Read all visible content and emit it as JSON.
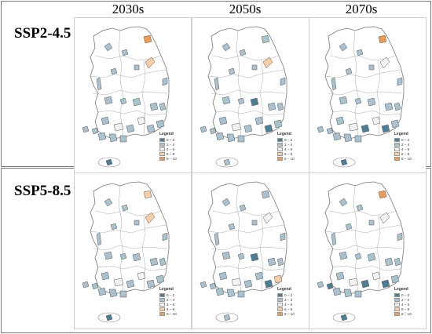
{
  "column_headers": [
    "2030s",
    "2050s",
    "2070s"
  ],
  "rows": [
    {
      "label": "SSP2-4.5"
    },
    {
      "label": "SSP5-8.5"
    }
  ],
  "legend": {
    "title": "Legend",
    "classes": [
      {
        "label": "0 – 2",
        "color": "#4a7f95"
      },
      {
        "label": "2 – 4",
        "color": "#a9c2cf"
      },
      {
        "label": "4 – 6",
        "color": "#f2f2f2"
      },
      {
        "label": "6 – 8",
        "color": "#f8cfa4"
      },
      {
        "label": "8 – 10",
        "color": "#ef9b52"
      }
    ]
  },
  "map_panels": [
    {
      "scenario": "SSP2-4.5",
      "period": "2030s",
      "region_classes": [
        1,
        1,
        4,
        3,
        1,
        1,
        1,
        1,
        1,
        1,
        2,
        1,
        1,
        1,
        2,
        1,
        1,
        1,
        1,
        1,
        1,
        1,
        1,
        0,
        1
      ]
    },
    {
      "scenario": "SSP2-4.5",
      "period": "2050s",
      "region_classes": [
        1,
        1,
        1,
        3,
        1,
        1,
        1,
        1,
        1,
        0,
        1,
        1,
        1,
        1,
        2,
        1,
        0,
        1,
        1,
        1,
        1,
        1,
        1,
        1,
        1
      ]
    },
    {
      "scenario": "SSP2-4.5",
      "period": "2070s",
      "region_classes": [
        1,
        1,
        4,
        2,
        1,
        1,
        1,
        1,
        1,
        1,
        2,
        1,
        1,
        1,
        2,
        0,
        0,
        1,
        1,
        1,
        1,
        1,
        1,
        0,
        1
      ]
    },
    {
      "scenario": "SSP5-8.5",
      "period": "2030s",
      "region_classes": [
        1,
        1,
        3,
        3,
        1,
        1,
        1,
        1,
        1,
        1,
        2,
        1,
        1,
        1,
        2,
        1,
        1,
        1,
        1,
        1,
        1,
        1,
        1,
        0,
        1
      ]
    },
    {
      "scenario": "SSP5-8.5",
      "period": "2050s",
      "region_classes": [
        1,
        1,
        1,
        2,
        1,
        1,
        1,
        1,
        1,
        0,
        1,
        1,
        1,
        1,
        2,
        1,
        0,
        3,
        1,
        1,
        1,
        1,
        1,
        1,
        1
      ]
    },
    {
      "scenario": "SSP5-8.5",
      "period": "2070s",
      "region_classes": [
        1,
        1,
        4,
        2,
        1,
        1,
        1,
        1,
        1,
        1,
        2,
        1,
        1,
        1,
        2,
        0,
        0,
        1,
        1,
        0,
        1,
        1,
        1,
        0,
        1
      ]
    }
  ]
}
